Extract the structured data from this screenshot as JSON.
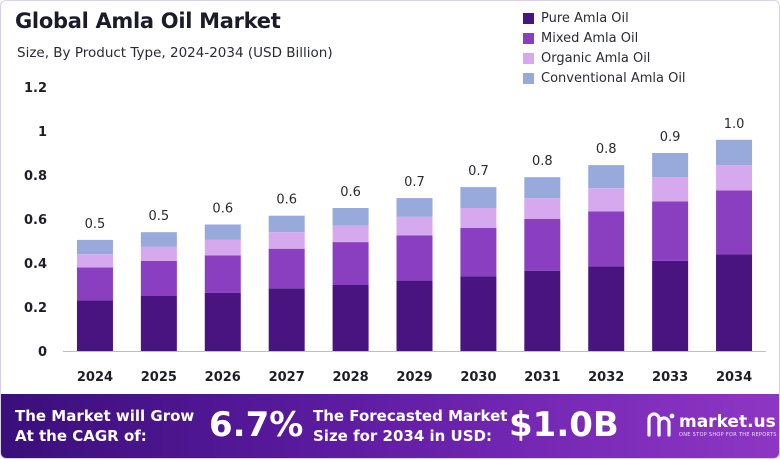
{
  "header": {
    "title": "Global Amla Oil Market",
    "subtitle": "Size, By Product Type, 2024-2034 (USD Billion)"
  },
  "colors": {
    "pure": "#4a1480",
    "mixed": "#8a3fc1",
    "organic": "#d6a9ee",
    "conventional": "#98a9db"
  },
  "chart_data": {
    "type": "bar",
    "stacked": true,
    "categories": [
      "2024",
      "2025",
      "2026",
      "2027",
      "2028",
      "2029",
      "2030",
      "2031",
      "2032",
      "2033",
      "2034"
    ],
    "series": [
      {
        "name": "Pure Amla Oil",
        "values": [
          0.23,
          0.25,
          0.265,
          0.285,
          0.3,
          0.32,
          0.34,
          0.365,
          0.385,
          0.41,
          0.44
        ]
      },
      {
        "name": "Mixed Amla Oil",
        "values": [
          0.15,
          0.16,
          0.17,
          0.18,
          0.195,
          0.205,
          0.22,
          0.235,
          0.25,
          0.27,
          0.29
        ]
      },
      {
        "name": "Organic Amla Oil",
        "values": [
          0.06,
          0.065,
          0.07,
          0.075,
          0.075,
          0.085,
          0.09,
          0.095,
          0.105,
          0.11,
          0.115
        ]
      },
      {
        "name": "Conventional Amla Oil",
        "values": [
          0.065,
          0.065,
          0.07,
          0.075,
          0.08,
          0.085,
          0.095,
          0.095,
          0.105,
          0.11,
          0.115
        ]
      }
    ],
    "totals_labels": [
      "0.5",
      "0.5",
      "0.6",
      "0.6",
      "0.6",
      "0.7",
      "0.7",
      "0.8",
      "0.8",
      "0.9",
      "1.0"
    ],
    "yticks": [
      "0",
      "0.2",
      "0.4",
      "0.6",
      "0.8",
      "1",
      "1.2"
    ],
    "ylim": [
      0,
      1.2
    ],
    "grid": false,
    "legend": "top-right"
  },
  "banner": {
    "cagr_text_line1": "The Market will Grow",
    "cagr_text_line2": "At the CAGR of:",
    "cagr_value": "6.7%",
    "forecast_text_line1": "The Forecasted Market",
    "forecast_text_line2": "Size for 2034 in USD:",
    "forecast_value": "$1.0B",
    "logo_name": "market.us",
    "logo_tagline": "ONE STOP SHOP FOR THE REPORTS"
  }
}
